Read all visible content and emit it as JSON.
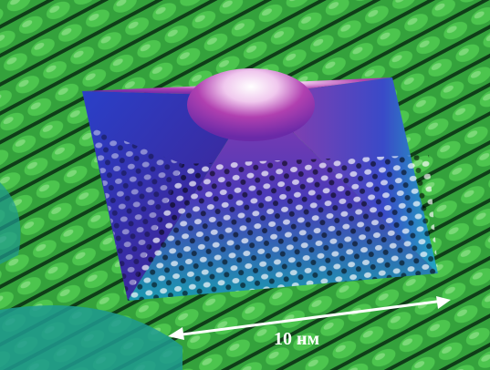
{
  "image": {
    "scale_label": "10 нм"
  }
}
